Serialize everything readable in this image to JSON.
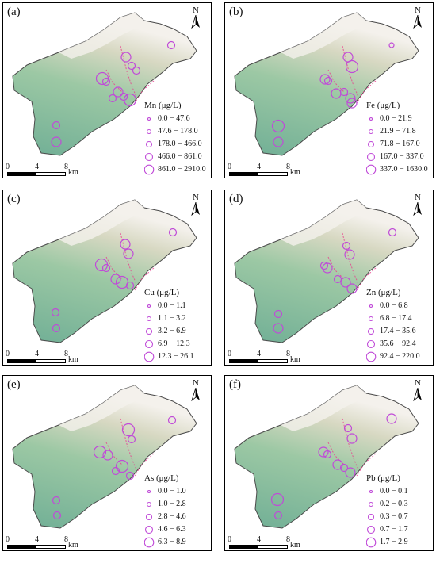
{
  "panels": [
    {
      "tag": "(a)",
      "metal": "Mn (μg/L)",
      "classes": [
        "0.0 − 47.6",
        "47.6 − 178.0",
        "178.0 − 466.0",
        "466.0 − 861.0",
        "861.0 − 2910.0"
      ]
    },
    {
      "tag": "(b)",
      "metal": "Fe (μg/L)",
      "classes": [
        "0.0 − 21.9",
        "21.9 − 71.8",
        "71.8 − 167.0",
        "167.0 − 337.0",
        "337.0 − 1630.0"
      ]
    },
    {
      "tag": "(c)",
      "metal": "Cu (μg/L)",
      "classes": [
        "0.0 − 1.1",
        "1.1 − 3.2",
        "3.2 − 6.9",
        "6.9 − 12.3",
        "12.3 − 26.1"
      ]
    },
    {
      "tag": "(d)",
      "metal": "Zn (μg/L)",
      "classes": [
        "0.0 − 6.8",
        "6.8 − 17.4",
        "17.4 − 35.6",
        "35.6 − 92.4",
        "92.4 − 220.0"
      ]
    },
    {
      "tag": "(e)",
      "metal": "As (μg/L)",
      "classes": [
        "0.0 − 1.0",
        "1.0 − 2.8",
        "2.8 − 4.6",
        "4.6 − 6.3",
        "6.3 − 8.9"
      ]
    },
    {
      "tag": "(f)",
      "metal": "Pb (μg/L)",
      "classes": [
        "0.0 − 0.1",
        "0.2 − 0.3",
        "0.3 − 0.7",
        "0.7 − 1.7",
        "1.7 − 2.9"
      ]
    }
  ],
  "north_label": "N",
  "scale_bar": {
    "ticks": [
      "0",
      "4",
      "8"
    ],
    "unit": "km"
  },
  "colors": {
    "lowland": "#6fae95",
    "midland": "#9cc8a4",
    "ridge": "#d7d8c2",
    "peak": "#f4f1ec",
    "river": "#e83c8c",
    "symbol": "#c04ad8"
  }
}
